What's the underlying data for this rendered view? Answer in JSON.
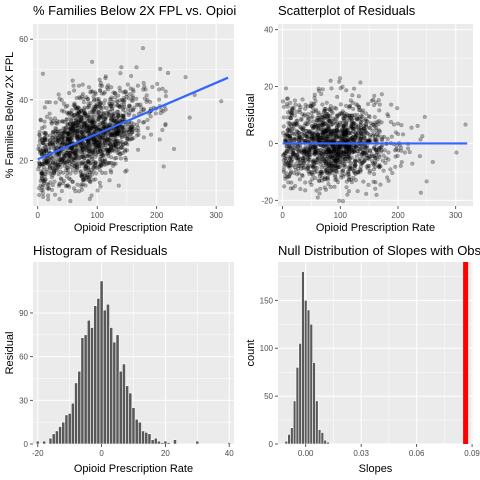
{
  "chart_data": [
    {
      "id": "p1",
      "type": "scatter",
      "title": "% Families Below 2X FPL vs. Opioi",
      "xlabel": "Opioid Prescription Rate",
      "ylabel": "% Families Below 2X FPL",
      "xlim": [
        -8,
        330
      ],
      "ylim": [
        5,
        65
      ],
      "xticks": [
        0,
        100,
        200,
        300
      ],
      "yticks": [
        20,
        40,
        60
      ],
      "grid": true,
      "n_points": 1500,
      "points_model": {
        "x_center": 85,
        "x_spread": 45,
        "y_intercept": 20.4,
        "y_slope": 0.084,
        "y_noise": 7
      },
      "fit_line": {
        "x": [
          0,
          320
        ],
        "y": [
          20.4,
          47.3
        ],
        "color": "#3366FF"
      },
      "point_color": "#000000",
      "point_alpha": 0.3
    },
    {
      "id": "p2",
      "type": "scatter",
      "title": "Scatterplot of Residuals",
      "xlabel": "Opioid Prescription Rate",
      "ylabel": "Residual",
      "xlim": [
        -8,
        330
      ],
      "ylim": [
        -22,
        42
      ],
      "xticks": [
        0,
        100,
        200,
        300
      ],
      "yticks": [
        -20,
        0,
        20,
        40
      ],
      "grid": true,
      "n_points": 1500,
      "points_model": {
        "x_center": 85,
        "x_spread": 45,
        "y_center": 0,
        "y_noise": 7
      },
      "fit_line": {
        "x": [
          0,
          320
        ],
        "y": [
          0,
          0
        ],
        "color": "#3366FF"
      },
      "point_color": "#000000",
      "point_alpha": 0.3
    },
    {
      "id": "p3",
      "type": "bar",
      "title": "Histogram of Residuals",
      "xlabel": "Opioid Prescription Rate",
      "ylabel": "Residual",
      "xlim": [
        -21.5,
        41.5
      ],
      "ylim": [
        0,
        125
      ],
      "xticks": [
        -20,
        0,
        20,
        40
      ],
      "yticks": [
        0,
        30,
        60,
        90
      ],
      "grid": true,
      "bin_width": 1,
      "bin_centers": [
        -20,
        -19,
        -18,
        -17,
        -16,
        -15,
        -14,
        -13,
        -12,
        -11,
        -10,
        -9,
        -8,
        -7,
        -6,
        -5,
        -4,
        -3,
        -2,
        -1,
        0,
        1,
        2,
        3,
        4,
        5,
        6,
        7,
        8,
        9,
        10,
        11,
        12,
        13,
        14,
        15,
        16,
        17,
        18,
        19,
        20,
        21,
        22,
        23,
        24,
        25,
        26,
        27,
        28,
        29,
        30,
        31,
        32,
        33,
        34,
        35,
        36,
        37,
        38,
        39,
        40
      ],
      "values": [
        2,
        0,
        2,
        0,
        4,
        7,
        9,
        12,
        15,
        20,
        21,
        28,
        42,
        50,
        73,
        75,
        85,
        80,
        95,
        100,
        112,
        92,
        96,
        80,
        70,
        75,
        50,
        55,
        40,
        35,
        25,
        17,
        15,
        9,
        8,
        7,
        3,
        4,
        2,
        1,
        2,
        1,
        0,
        3,
        0,
        0,
        0,
        0,
        0,
        0,
        2,
        0,
        0,
        0,
        0,
        0,
        0,
        0,
        0,
        0,
        1
      ],
      "bar_fill": "#595959",
      "bar_outline": "#ffffff"
    },
    {
      "id": "p4",
      "type": "bar",
      "title": "Null Distribution of Slopes with Obs",
      "xlabel": "Slopes",
      "ylabel": "count",
      "xlim": [
        -0.015,
        0.0905
      ],
      "ylim": [
        0,
        190
      ],
      "xticks": [
        0.0,
        0.03,
        0.06,
        0.09
      ],
      "xtick_labels": [
        "0.00",
        "0.03",
        "0.06",
        "0.09"
      ],
      "yticks": [
        0,
        50,
        100,
        150
      ],
      "grid": true,
      "bin_width": 0.0015,
      "bin_centers": [
        -0.0105,
        -0.009,
        -0.0075,
        -0.006,
        -0.0045,
        -0.003,
        -0.0015,
        0.0,
        0.0015,
        0.003,
        0.0045,
        0.006,
        0.0075,
        0.009,
        0.0105,
        0.012
      ],
      "values": [
        3,
        10,
        17,
        45,
        80,
        105,
        180,
        150,
        140,
        125,
        85,
        45,
        15,
        12,
        4,
        2
      ],
      "bar_fill": "#595959",
      "bar_outline": "#ffffff",
      "observed_slope": 0.0865,
      "observed_color": "#ff0000"
    }
  ]
}
